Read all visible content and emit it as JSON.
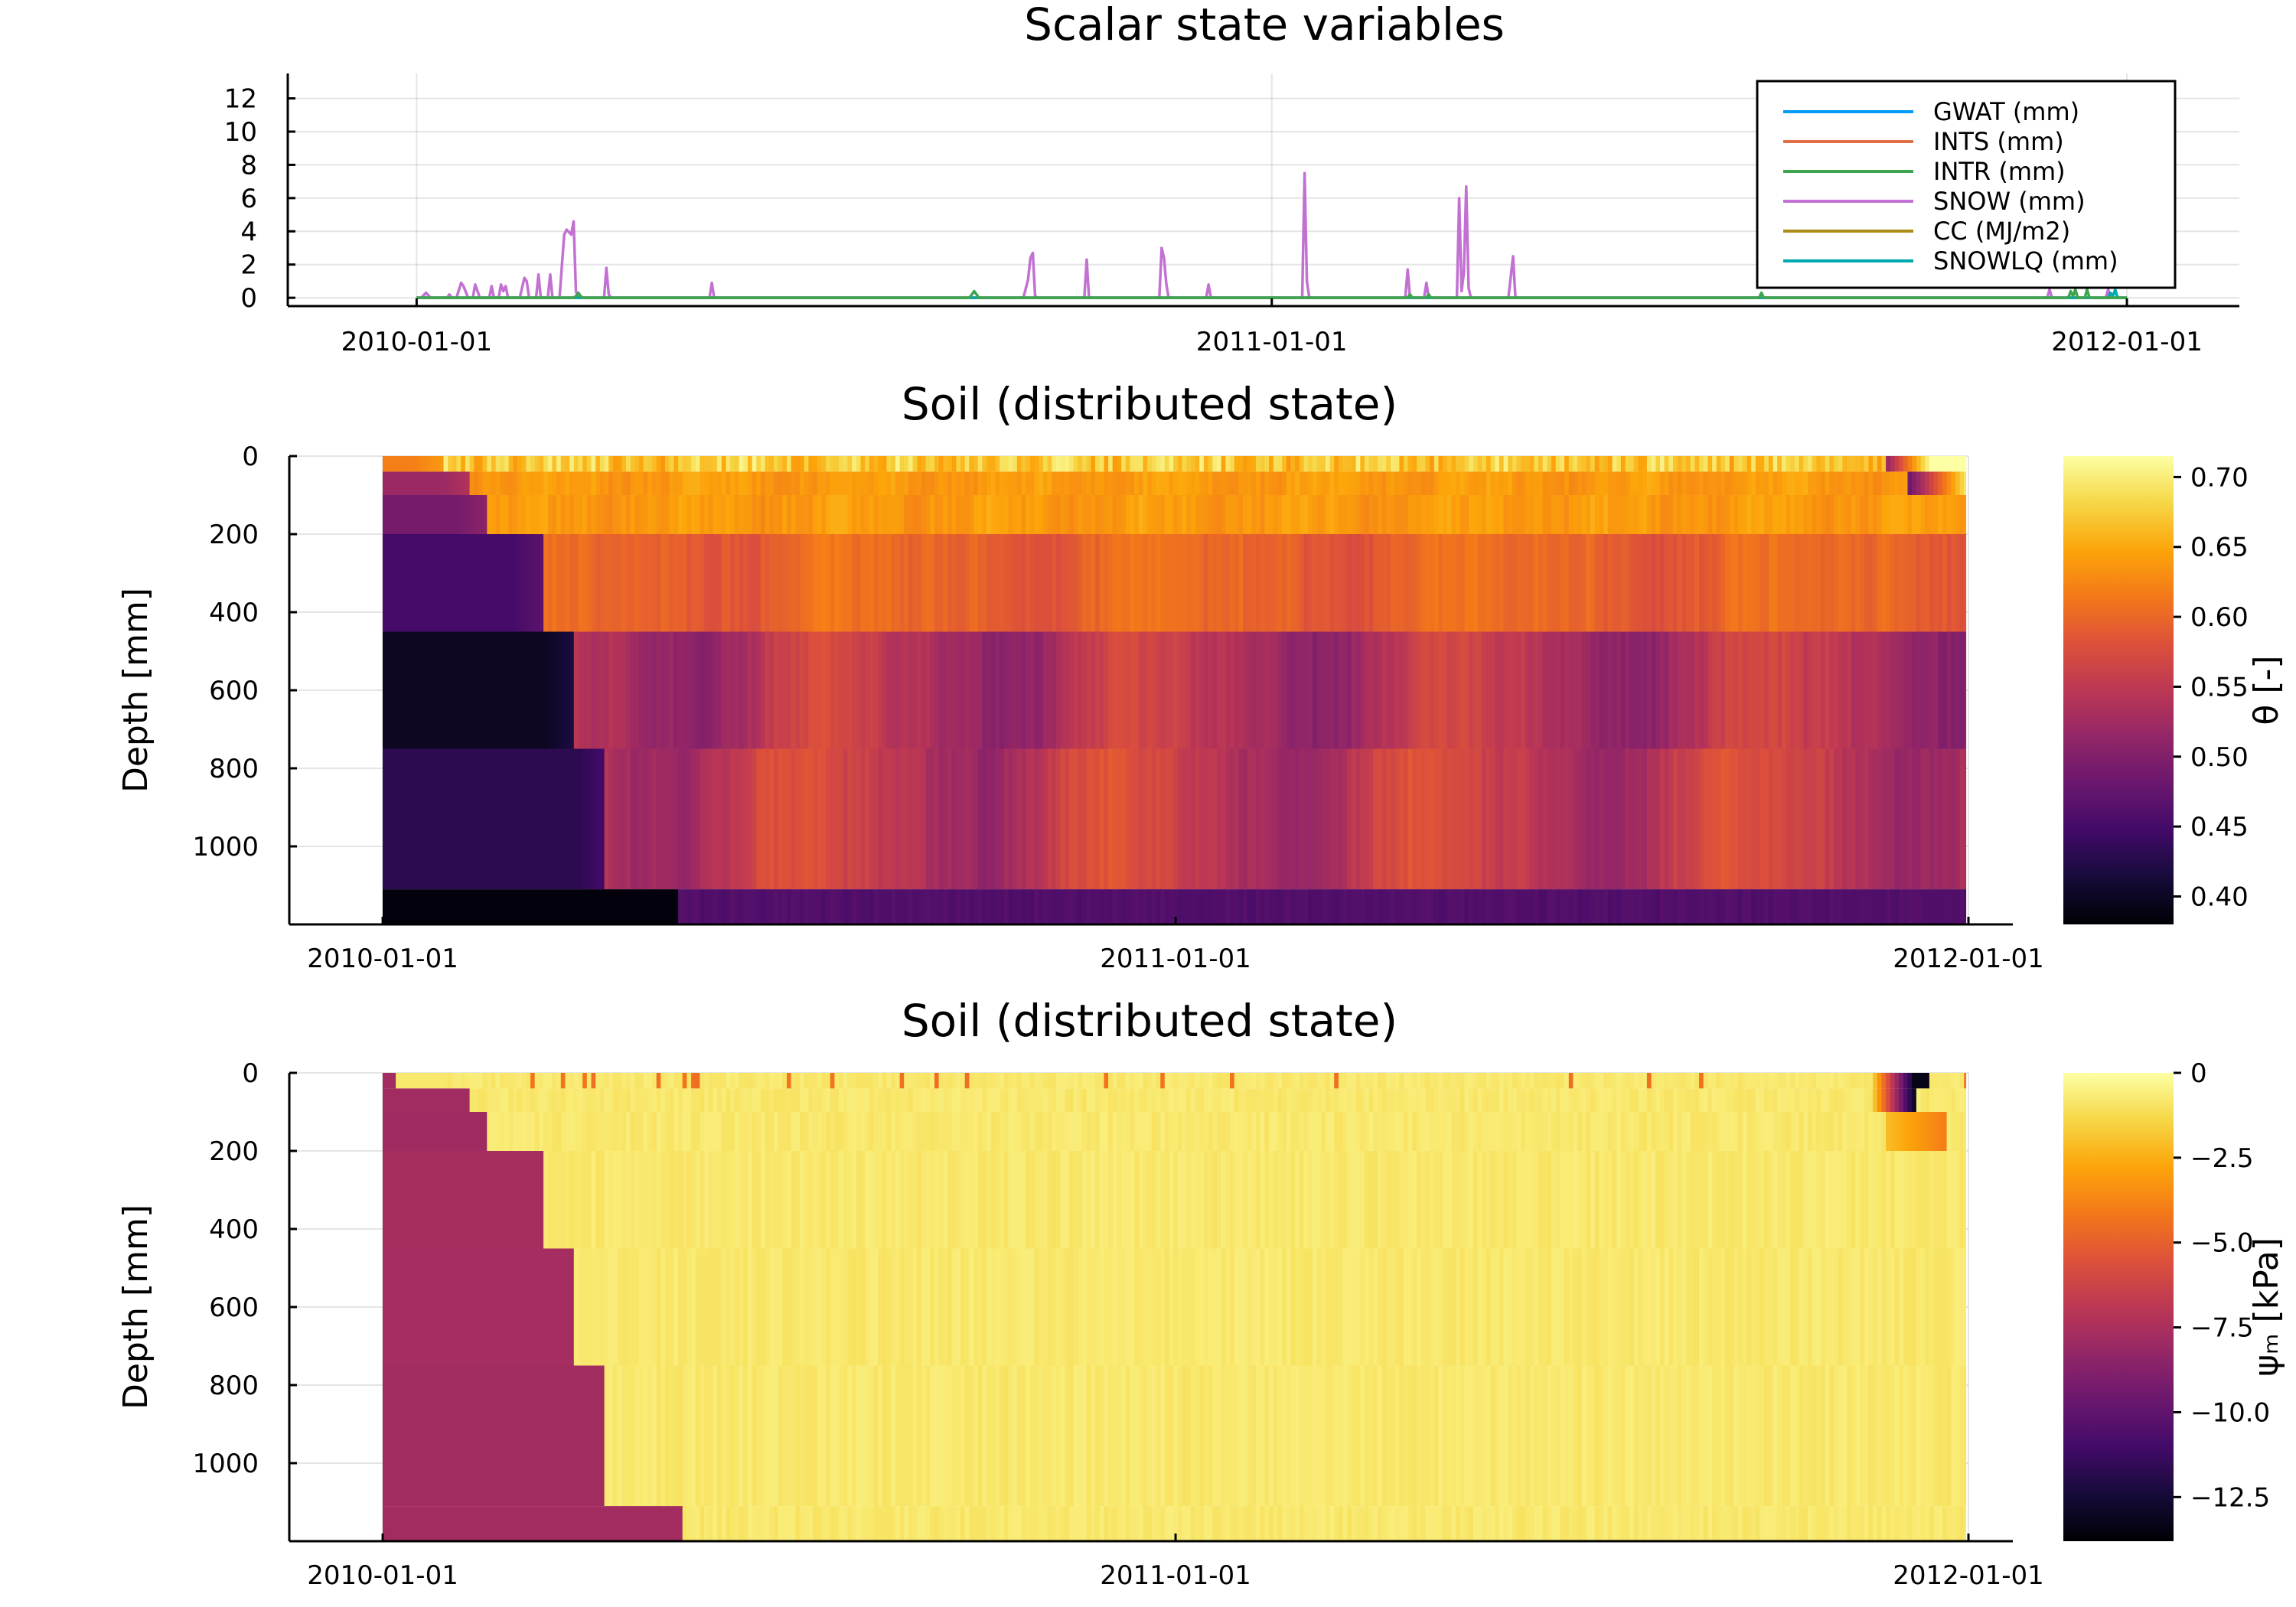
{
  "chart_data": [
    {
      "type": "line",
      "title": "Scalar state variables",
      "xlabel": "",
      "ylabel": "",
      "x_ticks": [
        "2010-01-01",
        "2011-01-01",
        "2012-01-01"
      ],
      "x_range": [
        "2009-11-07",
        "2012-02-18"
      ],
      "ylim": [
        -0.5,
        13.5
      ],
      "y_ticks": [
        0,
        2,
        4,
        6,
        8,
        10,
        12
      ],
      "grid": true,
      "legend_position": "top-right",
      "series": [
        {
          "name": "GWAT (mm)",
          "color": "#009AFA",
          "points": [
            [
              "2010-01-01",
              0
            ],
            [
              "2012-01-01",
              0
            ]
          ]
        },
        {
          "name": "INTS (mm)",
          "color": "#E36F47",
          "points": [
            [
              "2010-01-01",
              0
            ],
            [
              "2012-01-01",
              0
            ]
          ]
        },
        {
          "name": "INTR (mm)",
          "color": "#3EA44E",
          "points": [
            [
              "2010-01-01",
              0
            ],
            [
              "2010-03-09",
              0
            ],
            [
              "2010-03-10",
              0.1
            ],
            [
              "2010-03-11",
              0.3
            ],
            [
              "2010-03-12",
              0.1
            ],
            [
              "2010-03-13",
              0
            ],
            [
              "2010-08-25",
              0
            ],
            [
              "2010-08-27",
              0.4
            ],
            [
              "2010-08-29",
              0
            ],
            [
              "2011-02-28",
              0
            ],
            [
              "2011-03-01",
              0.2
            ],
            [
              "2011-03-02",
              0
            ],
            [
              "2011-03-08",
              0
            ],
            [
              "2011-03-09",
              0.2
            ],
            [
              "2011-03-10",
              0
            ],
            [
              "2011-07-28",
              0
            ],
            [
              "2011-07-29",
              0.3
            ],
            [
              "2011-07-30",
              0
            ],
            [
              "2011-12-07",
              0
            ],
            [
              "2011-12-08",
              0.4
            ],
            [
              "2011-12-09",
              0.1
            ],
            [
              "2011-12-10",
              0.5
            ],
            [
              "2011-12-11",
              0
            ],
            [
              "2011-12-14",
              0
            ],
            [
              "2011-12-15",
              0.5
            ],
            [
              "2011-12-16",
              0
            ],
            [
              "2012-01-01",
              0
            ]
          ]
        },
        {
          "name": "SNOW (mm)",
          "color": "#C271D2",
          "points": [
            [
              "2010-01-01",
              0
            ],
            [
              "2010-01-03",
              0
            ],
            [
              "2010-01-05",
              0.3
            ],
            [
              "2010-01-07",
              0
            ],
            [
              "2010-01-14",
              0
            ],
            [
              "2010-01-15",
              0.2
            ],
            [
              "2010-01-16",
              0
            ],
            [
              "2010-01-18",
              0
            ],
            [
              "2010-01-20",
              0.9
            ],
            [
              "2010-01-21",
              0.7
            ],
            [
              "2010-01-23",
              0
            ],
            [
              "2010-01-25",
              0
            ],
            [
              "2010-01-26",
              0.8
            ],
            [
              "2010-01-28",
              0
            ],
            [
              "2010-02-01",
              0
            ],
            [
              "2010-02-02",
              0.7
            ],
            [
              "2010-02-03",
              0
            ],
            [
              "2010-02-05",
              0
            ],
            [
              "2010-02-06",
              0.8
            ],
            [
              "2010-02-07",
              0.4
            ],
            [
              "2010-02-08",
              0.7
            ],
            [
              "2010-02-09",
              0
            ],
            [
              "2010-02-14",
              0
            ],
            [
              "2010-02-16",
              1.2
            ],
            [
              "2010-02-17",
              1.0
            ],
            [
              "2010-02-18",
              0
            ],
            [
              "2010-02-21",
              0
            ],
            [
              "2010-02-22",
              1.4
            ],
            [
              "2010-02-23",
              0
            ],
            [
              "2010-02-26",
              0
            ],
            [
              "2010-02-27",
              1.4
            ],
            [
              "2010-02-28",
              0
            ],
            [
              "2010-03-03",
              0
            ],
            [
              "2010-03-05",
              3.8
            ],
            [
              "2010-03-06",
              4.1
            ],
            [
              "2010-03-08",
              3.8
            ],
            [
              "2010-03-09",
              4.6
            ],
            [
              "2010-03-10",
              0.4
            ],
            [
              "2010-03-11",
              0
            ],
            [
              "2010-03-22",
              0
            ],
            [
              "2010-03-23",
              1.8
            ],
            [
              "2010-03-24",
              0.2
            ],
            [
              "2010-03-25",
              0
            ],
            [
              "2010-05-06",
              0
            ],
            [
              "2010-05-07",
              0.9
            ],
            [
              "2010-05-08",
              0
            ],
            [
              "2010-09-17",
              0
            ],
            [
              "2010-09-19",
              1.1
            ],
            [
              "2010-09-20",
              2.4
            ],
            [
              "2010-09-21",
              2.7
            ],
            [
              "2010-09-22",
              0.1
            ],
            [
              "2010-09-23",
              0
            ],
            [
              "2010-10-13",
              0
            ],
            [
              "2010-10-14",
              2.3
            ],
            [
              "2010-10-15",
              0
            ],
            [
              "2010-11-14",
              0
            ],
            [
              "2010-11-15",
              3.0
            ],
            [
              "2010-11-16",
              2.4
            ],
            [
              "2010-11-17",
              0.8
            ],
            [
              "2010-11-18",
              0
            ],
            [
              "2010-12-04",
              0
            ],
            [
              "2010-12-05",
              0.8
            ],
            [
              "2010-12-06",
              0
            ],
            [
              "2011-01-14",
              0
            ],
            [
              "2011-01-15",
              7.5
            ],
            [
              "2011-01-16",
              1.0
            ],
            [
              "2011-01-17",
              0
            ],
            [
              "2011-02-27",
              0
            ],
            [
              "2011-02-28",
              1.7
            ],
            [
              "2011-03-01",
              0
            ],
            [
              "2011-03-07",
              0
            ],
            [
              "2011-03-08",
              0.9
            ],
            [
              "2011-03-09",
              0
            ],
            [
              "2011-03-21",
              0
            ],
            [
              "2011-03-22",
              6.0
            ],
            [
              "2011-03-23",
              0.4
            ],
            [
              "2011-03-24",
              1.5
            ],
            [
              "2011-03-25",
              6.7
            ],
            [
              "2011-03-26",
              0.6
            ],
            [
              "2011-03-27",
              0
            ],
            [
              "2011-04-12",
              0
            ],
            [
              "2011-04-14",
              2.5
            ],
            [
              "2011-04-15",
              0
            ],
            [
              "2011-11-28",
              0
            ],
            [
              "2011-11-29",
              0.5
            ],
            [
              "2011-11-30",
              0
            ],
            [
              "2011-12-23",
              0
            ],
            [
              "2011-12-24",
              0.5
            ],
            [
              "2011-12-25",
              0
            ],
            [
              "2012-01-01",
              0
            ]
          ]
        },
        {
          "name": "CC (MJ/m2)",
          "color": "#AC8D18",
          "points": [
            [
              "2010-01-01",
              0
            ],
            [
              "2012-01-01",
              0
            ]
          ]
        },
        {
          "name": "SNOWLQ (mm)",
          "color": "#00A9AD",
          "points": [
            [
              "2010-01-01",
              0
            ],
            [
              "2011-12-24",
              0
            ],
            [
              "2011-12-25",
              0.3
            ],
            [
              "2011-12-26",
              0.1
            ],
            [
              "2011-12-27",
              0.5
            ],
            [
              "2011-12-28",
              0
            ],
            [
              "2012-01-01",
              0
            ]
          ]
        }
      ]
    },
    {
      "type": "heatmap",
      "title": "Soil (distributed state)",
      "ylabel": "Depth [mm]",
      "x_ticks": [
        "2010-01-01",
        "2011-01-01",
        "2012-01-01"
      ],
      "x_range": [
        "2009-11-19",
        "2012-01-01"
      ],
      "data_x_range": [
        "2010-01-01",
        "2011-12-31"
      ],
      "ylim": [
        0,
        1200
      ],
      "y_inverted": true,
      "y_ticks": [
        0,
        200,
        400,
        600,
        800,
        1000
      ],
      "colormap": "inferno",
      "colorbar_label": "θ [-]",
      "colorbar_range": [
        0.38,
        0.715
      ],
      "colorbar_ticks": [
        0.4,
        0.45,
        0.5,
        0.55,
        0.6,
        0.65,
        0.7
      ],
      "layers_depth_mm": [
        0,
        40,
        100,
        200,
        450,
        750,
        1110,
        1200
      ],
      "notes": "Each layer starts dry (dark) and switches to wet once the wetting front arrives, at roughly 2010-01-29 (layer 1) to 2010-05-17 (layer 6); the bottom layer stays near 0.39 until 2010-05-17, then about 0.46.",
      "initial_values": [
        0.62,
        0.52,
        0.49,
        0.45,
        0.4,
        0.43,
        0.385
      ],
      "wet_values": [
        0.66,
        0.64,
        0.64,
        0.61,
        0.57,
        0.58,
        0.46
      ]
    },
    {
      "type": "heatmap",
      "title": "Soil (distributed state)",
      "ylabel": "Depth [mm]",
      "x_ticks": [
        "2010-01-01",
        "2011-01-01",
        "2012-01-01"
      ],
      "x_range": [
        "2009-11-19",
        "2012-01-01"
      ],
      "data_x_range": [
        "2010-01-01",
        "2011-12-31"
      ],
      "ylim": [
        0,
        1200
      ],
      "y_inverted": true,
      "y_ticks": [
        0,
        200,
        400,
        600,
        800,
        1000
      ],
      "colormap": "inferno",
      "colorbar_label": "ψₘ [kPa]",
      "colorbar_range": [
        -13.8,
        0
      ],
      "colorbar_ticks": [
        -12.5,
        -10.0,
        -7.5,
        -5.0,
        -2.5,
        0
      ],
      "colorbar_tick_labels": [
        "−12.5",
        "−10.0",
        "−7.5",
        "−5.0",
        "−2.5",
        "0"
      ],
      "notes": "Dry layers sit near −7.5 to −8 kPa until the wetting front arrives, then stay near −0.5 kPa; a short dry spell near the surface in Dec 2011 reaches −13.5 kPa.",
      "initial_values_kpa": [
        -7.8,
        -7.8,
        -7.8,
        -7.8,
        -7.8,
        -7.8,
        -7.8
      ],
      "wet_values_kpa": [
        -0.6,
        -0.6,
        -0.6,
        -0.6,
        -0.6,
        -0.6,
        -0.6
      ]
    }
  ]
}
